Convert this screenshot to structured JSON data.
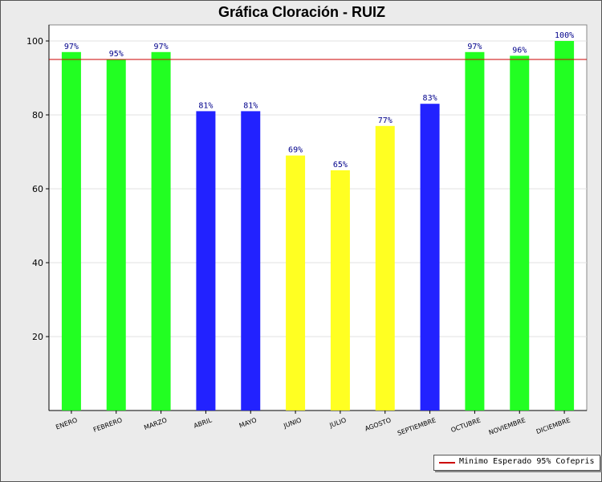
{
  "chart_data": {
    "type": "bar",
    "title": "Gráfica Cloración - RUIZ",
    "xlabel": "",
    "ylabel": "",
    "ylim": [
      0,
      100
    ],
    "yticks": [
      20,
      40,
      60,
      80,
      100
    ],
    "grid": true,
    "categories": [
      "ENERO",
      "FEBRERO",
      "MARZO",
      "ABRIL",
      "MAYO",
      "JUNIO",
      "JULIO",
      "AGOSTO",
      "SEPTIEMBRE",
      "OCTUBRE",
      "NOVIEMBRE",
      "DICIEMBRE"
    ],
    "values": [
      97,
      95,
      97,
      81,
      81,
      69,
      65,
      77,
      83,
      97,
      96,
      100
    ],
    "value_labels": [
      "97%",
      "95%",
      "97%",
      "81%",
      "81%",
      "69%",
      "65%",
      "77%",
      "83%",
      "97%",
      "96%",
      "100%"
    ],
    "bar_colors": [
      "#22ff22",
      "#22ff22",
      "#22ff22",
      "#2222ff",
      "#2222ff",
      "#ffff22",
      "#ffff22",
      "#ffff22",
      "#2222ff",
      "#22ff22",
      "#22ff22",
      "#22ff22"
    ],
    "reference_line": {
      "value": 95,
      "color": "#cc0000",
      "label": "Minimo Esperado 95% Cofepris"
    },
    "legend_position": "bottom-right"
  }
}
